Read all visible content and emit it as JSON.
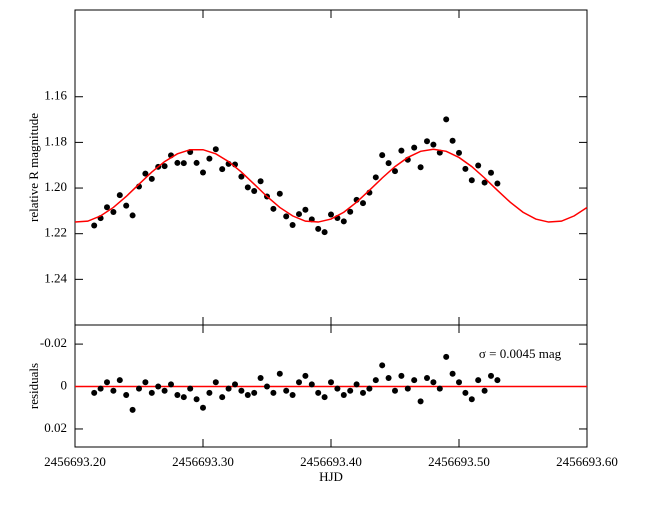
{
  "chart_data": [
    {
      "type": "scatter",
      "ylabel": "relative R magnitude",
      "xlim": [
        2456693.2,
        2456693.6
      ],
      "ylim": [
        1.26,
        1.122
      ],
      "yticks": [
        1.16,
        1.18,
        {
          "value": 1.2,
          "label": "1.20"
        },
        1.22,
        1.24
      ],
      "series": [
        {
          "type": "scatter",
          "color": "#000000",
          "x": [
            2456693.215,
            2456693.22,
            2456693.225,
            2456693.23,
            2456693.235,
            2456693.24,
            2456693.245,
            2456693.25,
            2456693.255,
            2456693.26,
            2456693.265,
            2456693.27,
            2456693.275,
            2456693.28,
            2456693.285,
            2456693.29,
            2456693.295,
            2456693.3,
            2456693.305,
            2456693.31,
            2456693.315,
            2456693.32,
            2456693.325,
            2456693.33,
            2456693.335,
            2456693.34,
            2456693.345,
            2456693.35,
            2456693.355,
            2456693.36,
            2456693.365,
            2456693.37,
            2456693.375,
            2456693.38,
            2456693.385,
            2456693.39,
            2456693.395,
            2456693.4,
            2456693.405,
            2456693.41,
            2456693.415,
            2456693.42,
            2456693.425,
            2456693.43,
            2456693.435,
            2456693.44,
            2456693.445,
            2456693.45,
            2456693.455,
            2456693.46,
            2456693.465,
            2456693.47,
            2456693.475,
            2456693.48,
            2456693.485,
            2456693.49,
            2456693.495,
            2456693.5,
            2456693.505,
            2456693.51,
            2456693.515,
            2456693.52,
            2456693.525,
            2456693.53
          ],
          "values": [
            1.2164,
            1.2132,
            1.2084,
            1.2105,
            1.2031,
            1.2077,
            1.212,
            1.1993,
            1.1937,
            1.196,
            1.1907,
            1.1904,
            1.1857,
            1.189,
            1.1891,
            1.1842,
            1.189,
            1.1932,
            1.1871,
            1.183,
            1.1917,
            1.1894,
            1.1897,
            1.195,
            1.1997,
            1.2013,
            1.197,
            1.2037,
            1.2091,
            1.2025,
            1.2124,
            1.2162,
            1.2114,
            1.2095,
            1.2137,
            1.2179,
            1.2193,
            1.2116,
            1.2131,
            1.2146,
            1.2104,
            1.2052,
            1.2066,
            1.202,
            1.1953,
            1.1856,
            1.1891,
            1.1926,
            1.1836,
            1.1876,
            1.1823,
            1.1909,
            1.1795,
            1.181,
            1.1845,
            1.1699,
            1.1793,
            1.1846,
            1.1916,
            1.1966,
            1.1901,
            1.1976,
            1.1933,
            1.198
          ]
        },
        {
          "type": "line",
          "color": "#ff0000",
          "x": [
            2456693.2,
            2456693.21,
            2456693.22,
            2456693.23,
            2456693.24,
            2456693.25,
            2456693.26,
            2456693.27,
            2456693.28,
            2456693.29,
            2456693.3,
            2456693.31,
            2456693.32,
            2456693.33,
            2456693.34,
            2456693.35,
            2456693.36,
            2456693.37,
            2456693.38,
            2456693.39,
            2456693.4,
            2456693.41,
            2456693.42,
            2456693.43,
            2456693.44,
            2456693.45,
            2456693.46,
            2456693.47,
            2456693.48,
            2456693.49,
            2456693.5,
            2456693.51,
            2456693.52,
            2456693.53,
            2456693.54,
            2456693.55,
            2456693.56,
            2456693.57,
            2456693.58,
            2456693.59,
            2456693.6
          ],
          "values": [
            1.2149,
            1.2145,
            1.2122,
            1.2085,
            1.2037,
            1.1983,
            1.193,
            1.1884,
            1.185,
            1.1832,
            1.1832,
            1.185,
            1.1884,
            1.193,
            1.1983,
            1.2037,
            1.2085,
            1.2122,
            1.2145,
            1.2149,
            1.2136,
            1.2106,
            1.2062,
            1.201,
            1.1956,
            1.1906,
            1.1866,
            1.1839,
            1.183,
            1.1839,
            1.1866,
            1.1906,
            1.1956,
            1.201,
            1.2062,
            1.2106,
            1.2136,
            1.2149,
            1.2145,
            1.2122,
            1.2085
          ]
        }
      ]
    },
    {
      "type": "scatter",
      "ylabel": "residuals",
      "xlabel": "HJD",
      "annotation": "σ = 0.0045 mag",
      "xlim": [
        2456693.2,
        2456693.6
      ],
      "xticks": [
        {
          "value": 2456693.2,
          "label": "2456693.20"
        },
        {
          "value": 2456693.3,
          "label": "2456693.30"
        },
        {
          "value": 2456693.4,
          "label": "2456693.40"
        },
        {
          "value": 2456693.5,
          "label": "2456693.50"
        },
        {
          "value": 2456693.6,
          "label": "2456693.60"
        }
      ],
      "ylim": [
        0.0285,
        -0.029
      ],
      "yticks": [
        -0.02,
        0,
        0.02
      ],
      "reference_line": {
        "value": 0,
        "color": "#ff0000"
      },
      "series": [
        {
          "type": "scatter",
          "color": "#000000",
          "x": [
            2456693.215,
            2456693.22,
            2456693.225,
            2456693.23,
            2456693.235,
            2456693.24,
            2456693.245,
            2456693.25,
            2456693.255,
            2456693.26,
            2456693.265,
            2456693.27,
            2456693.275,
            2456693.28,
            2456693.285,
            2456693.29,
            2456693.295,
            2456693.3,
            2456693.305,
            2456693.31,
            2456693.315,
            2456693.32,
            2456693.325,
            2456693.33,
            2456693.335,
            2456693.34,
            2456693.345,
            2456693.35,
            2456693.355,
            2456693.36,
            2456693.365,
            2456693.37,
            2456693.375,
            2456693.38,
            2456693.385,
            2456693.39,
            2456693.395,
            2456693.4,
            2456693.405,
            2456693.41,
            2456693.415,
            2456693.42,
            2456693.425,
            2456693.43,
            2456693.435,
            2456693.44,
            2456693.445,
            2456693.45,
            2456693.455,
            2456693.46,
            2456693.465,
            2456693.47,
            2456693.475,
            2456693.48,
            2456693.485,
            2456693.49,
            2456693.495,
            2456693.5,
            2456693.505,
            2456693.51,
            2456693.515,
            2456693.52,
            2456693.525,
            2456693.53
          ],
          "values": [
            0.003,
            0.001,
            -0.002,
            0.002,
            -0.003,
            0.004,
            0.011,
            0.001,
            -0.002,
            0.003,
            0,
            0.002,
            -0.001,
            0.004,
            0.005,
            0.001,
            0.006,
            0.01,
            0.003,
            -0.002,
            0.005,
            0.001,
            -0.001,
            0.002,
            0.004,
            0.003,
            -0.004,
            0,
            0.003,
            -0.006,
            0.002,
            0.004,
            -0.002,
            -0.005,
            -0.001,
            0.003,
            0.005,
            -0.002,
            0.001,
            0.004,
            0.002,
            -0.001,
            0.003,
            0.001,
            -0.003,
            -0.01,
            -0.004,
            0.002,
            -0.005,
            0.001,
            -0.003,
            0.007,
            -0.004,
            -0.002,
            0.001,
            -0.014,
            -0.006,
            -0.002,
            0.003,
            0.006,
            -0.003,
            0.002,
            -0.005,
            -0.003
          ]
        }
      ]
    }
  ]
}
